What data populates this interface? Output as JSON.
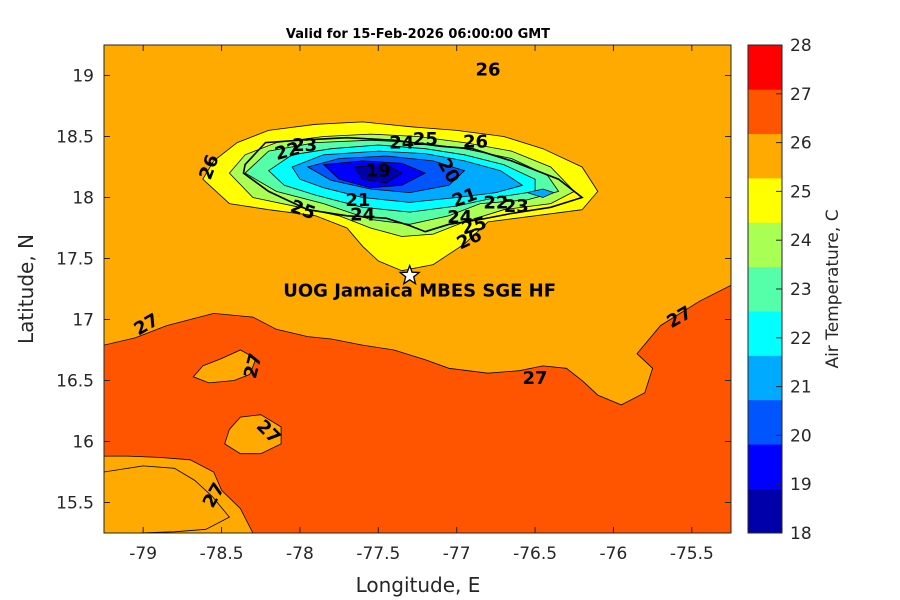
{
  "title": "Valid for 15-Feb-2026 06:00:00 GMT",
  "station": {
    "label": "UOG Jamaica MBES SGE HF",
    "lon": -77.3,
    "lat": 17.36
  },
  "chart_data": {
    "type": "filled-contour-map",
    "title": "Valid for 15-Feb-2026 06:00:00 GMT",
    "xlabel": "Longitude, E",
    "ylabel": "Latitude, N",
    "xlim": [
      -79.25,
      -75.25
    ],
    "ylim": [
      15.25,
      19.25
    ],
    "xticks": [
      -79,
      -78.5,
      -78,
      -77.5,
      -77,
      -76.5,
      -76,
      -75.5
    ],
    "xtick_labels": [
      "-79",
      "-78.5",
      "-78",
      "-77.5",
      "-77",
      "-76.5",
      "-76",
      "-75.5"
    ],
    "yticks": [
      15.5,
      16,
      16.5,
      17,
      17.5,
      18,
      18.5,
      19
    ],
    "ytick_labels": [
      "15.5",
      "16",
      "16.5",
      "17",
      "17.5",
      "18",
      "18.5",
      "19"
    ],
    "colorbar": {
      "label": "Air Temperature, C",
      "levels": [
        18,
        19,
        20,
        21,
        22,
        23,
        24,
        25,
        26,
        27,
        28
      ],
      "tick_labels": [
        "18",
        "19",
        "20",
        "21",
        "22",
        "23",
        "24",
        "25",
        "26",
        "27",
        "28"
      ],
      "colors": [
        "#0000aa",
        "#0000ff",
        "#0055ff",
        "#00aaff",
        "#00ffff",
        "#55ffaa",
        "#aaff55",
        "#ffff00",
        "#ffaa00",
        "#ff5500",
        "#ff0000"
      ]
    },
    "background_level": 26,
    "regions": [
      {
        "level": 27,
        "outline": [
          [
            -79.25,
            16.79
          ],
          [
            -79.05,
            16.85
          ],
          [
            -78.85,
            16.95
          ],
          [
            -78.55,
            17.05
          ],
          [
            -78.3,
            17.02
          ],
          [
            -78.15,
            16.92
          ],
          [
            -77.95,
            16.86
          ],
          [
            -77.8,
            16.84
          ],
          [
            -77.6,
            16.79
          ],
          [
            -77.4,
            16.75
          ],
          [
            -77.2,
            16.67
          ],
          [
            -77.05,
            16.6
          ],
          [
            -76.8,
            16.56
          ],
          [
            -76.6,
            16.58
          ],
          [
            -76.45,
            16.62
          ],
          [
            -76.3,
            16.6
          ],
          [
            -76.2,
            16.5
          ],
          [
            -76.1,
            16.38
          ],
          [
            -75.95,
            16.3
          ],
          [
            -75.8,
            16.4
          ],
          [
            -75.75,
            16.6
          ],
          [
            -75.85,
            16.72
          ],
          [
            -75.7,
            16.95
          ],
          [
            -75.45,
            17.15
          ],
          [
            -75.25,
            17.28
          ],
          [
            -75.25,
            15.25
          ],
          [
            -78.3,
            15.25
          ],
          [
            -78.38,
            15.45
          ],
          [
            -78.5,
            15.6
          ],
          [
            -78.55,
            15.75
          ],
          [
            -78.7,
            15.85
          ],
          [
            -78.9,
            15.87
          ],
          [
            -79.1,
            15.88
          ],
          [
            -79.25,
            15.88
          ]
        ]
      },
      {
        "level": 26,
        "outline": [
          [
            -79.25,
            15.75
          ],
          [
            -79.0,
            15.8
          ],
          [
            -78.8,
            15.78
          ],
          [
            -78.67,
            15.68
          ],
          [
            -78.56,
            15.55
          ],
          [
            -78.45,
            15.38
          ],
          [
            -78.6,
            15.28
          ],
          [
            -78.8,
            15.26
          ],
          [
            -79.05,
            15.25
          ],
          [
            -79.25,
            15.25
          ]
        ]
      },
      {
        "level": 26,
        "outline": [
          [
            -78.62,
            16.62
          ],
          [
            -78.5,
            16.68
          ],
          [
            -78.38,
            16.75
          ],
          [
            -78.28,
            16.68
          ],
          [
            -78.32,
            16.55
          ],
          [
            -78.42,
            16.5
          ],
          [
            -78.58,
            16.48
          ],
          [
            -78.68,
            16.53
          ]
        ]
      },
      {
        "level": 26,
        "outline": [
          [
            -78.45,
            16.1
          ],
          [
            -78.38,
            16.2
          ],
          [
            -78.25,
            16.22
          ],
          [
            -78.12,
            16.12
          ],
          [
            -78.12,
            15.98
          ],
          [
            -78.25,
            15.9
          ],
          [
            -78.38,
            15.9
          ],
          [
            -78.48,
            15.98
          ]
        ]
      },
      {
        "level": 25,
        "outline": [
          [
            -78.62,
            18.15
          ],
          [
            -78.55,
            18.3
          ],
          [
            -78.4,
            18.45
          ],
          [
            -78.2,
            18.55
          ],
          [
            -77.9,
            18.6
          ],
          [
            -77.6,
            18.62
          ],
          [
            -77.3,
            18.58
          ],
          [
            -77.0,
            18.55
          ],
          [
            -76.7,
            18.5
          ],
          [
            -76.45,
            18.4
          ],
          [
            -76.2,
            18.25
          ],
          [
            -76.1,
            18.05
          ],
          [
            -76.2,
            17.9
          ],
          [
            -76.5,
            17.85
          ],
          [
            -76.8,
            17.8
          ],
          [
            -76.95,
            17.62
          ],
          [
            -77.15,
            17.45
          ],
          [
            -77.35,
            17.4
          ],
          [
            -77.5,
            17.48
          ],
          [
            -77.6,
            17.6
          ],
          [
            -77.7,
            17.75
          ],
          [
            -77.9,
            17.85
          ],
          [
            -78.2,
            17.9
          ],
          [
            -78.45,
            17.95
          ]
        ]
      },
      {
        "level": 24,
        "outline": [
          [
            -78.45,
            18.2
          ],
          [
            -78.35,
            18.35
          ],
          [
            -78.15,
            18.45
          ],
          [
            -77.85,
            18.5
          ],
          [
            -77.55,
            18.52
          ],
          [
            -77.25,
            18.5
          ],
          [
            -76.95,
            18.45
          ],
          [
            -76.65,
            18.38
          ],
          [
            -76.4,
            18.25
          ],
          [
            -76.25,
            18.05
          ],
          [
            -76.4,
            17.95
          ],
          [
            -76.7,
            17.9
          ],
          [
            -76.95,
            17.8
          ],
          [
            -77.15,
            17.7
          ],
          [
            -77.35,
            17.68
          ],
          [
            -77.55,
            17.75
          ],
          [
            -77.75,
            17.85
          ],
          [
            -78.0,
            17.92
          ],
          [
            -78.3,
            18.0
          ]
        ]
      },
      {
        "level": 23,
        "outline": [
          [
            -78.35,
            18.2
          ],
          [
            -78.2,
            18.38
          ],
          [
            -77.9,
            18.45
          ],
          [
            -77.55,
            18.47
          ],
          [
            -77.25,
            18.45
          ],
          [
            -76.95,
            18.4
          ],
          [
            -76.65,
            18.32
          ],
          [
            -76.42,
            18.18
          ],
          [
            -76.35,
            18.05
          ],
          [
            -76.55,
            17.98
          ],
          [
            -76.85,
            17.95
          ],
          [
            -77.05,
            17.85
          ],
          [
            -77.3,
            17.78
          ],
          [
            -77.55,
            17.82
          ],
          [
            -77.85,
            17.95
          ],
          [
            -78.15,
            18.05
          ]
        ]
      },
      {
        "level": 22,
        "outline": [
          [
            -78.2,
            18.22
          ],
          [
            -78.05,
            18.35
          ],
          [
            -77.8,
            18.4
          ],
          [
            -77.5,
            18.43
          ],
          [
            -77.2,
            18.4
          ],
          [
            -76.95,
            18.35
          ],
          [
            -76.7,
            18.27
          ],
          [
            -76.5,
            18.15
          ],
          [
            -76.5,
            18.05
          ],
          [
            -76.75,
            18.0
          ],
          [
            -77.0,
            17.93
          ],
          [
            -77.3,
            17.88
          ],
          [
            -77.6,
            17.92
          ],
          [
            -77.9,
            18.02
          ],
          [
            -78.1,
            18.1
          ]
        ]
      },
      {
        "level": 21,
        "outline": [
          [
            -78.05,
            18.25
          ],
          [
            -77.85,
            18.35
          ],
          [
            -77.5,
            18.38
          ],
          [
            -77.2,
            18.36
          ],
          [
            -76.95,
            18.3
          ],
          [
            -76.72,
            18.22
          ],
          [
            -76.58,
            18.1
          ],
          [
            -76.75,
            18.04
          ],
          [
            -77.0,
            18.0
          ],
          [
            -77.3,
            17.96
          ],
          [
            -77.6,
            18.0
          ],
          [
            -77.85,
            18.08
          ],
          [
            -78.0,
            18.15
          ]
        ]
      },
      {
        "level": 20,
        "outline": [
          [
            -77.95,
            18.25
          ],
          [
            -77.75,
            18.32
          ],
          [
            -77.45,
            18.34
          ],
          [
            -77.15,
            18.3
          ],
          [
            -76.95,
            18.22
          ],
          [
            -77.05,
            18.1
          ],
          [
            -77.3,
            18.04
          ],
          [
            -77.55,
            18.07
          ],
          [
            -77.8,
            18.14
          ]
        ]
      },
      {
        "level": 19,
        "outline": [
          [
            -77.85,
            18.27
          ],
          [
            -77.6,
            18.3
          ],
          [
            -77.35,
            18.28
          ],
          [
            -77.2,
            18.2
          ],
          [
            -77.35,
            18.1
          ],
          [
            -77.55,
            18.08
          ],
          [
            -77.75,
            18.15
          ]
        ]
      },
      {
        "level": 18,
        "outline": [
          [
            -77.65,
            18.25
          ],
          [
            -77.45,
            18.27
          ],
          [
            -77.35,
            18.2
          ],
          [
            -77.45,
            18.12
          ],
          [
            -77.6,
            18.15
          ]
        ]
      },
      {
        "level": 21,
        "outline": [
          [
            -76.55,
            18.04
          ],
          [
            -76.45,
            18.07
          ],
          [
            -76.38,
            18.04
          ],
          [
            -76.45,
            18.0
          ]
        ]
      }
    ],
    "coastline": [
      [
        -78.35,
        18.27
      ],
      [
        -78.22,
        18.45
      ],
      [
        -78.0,
        18.47
      ],
      [
        -77.7,
        18.49
      ],
      [
        -77.4,
        18.47
      ],
      [
        -77.1,
        18.42
      ],
      [
        -76.9,
        18.4
      ],
      [
        -76.65,
        18.3
      ],
      [
        -76.35,
        18.15
      ],
      [
        -76.2,
        18.0
      ],
      [
        -76.4,
        17.92
      ],
      [
        -76.65,
        17.87
      ],
      [
        -76.85,
        17.82
      ],
      [
        -77.05,
        17.78
      ],
      [
        -77.2,
        17.72
      ],
      [
        -77.3,
        17.77
      ],
      [
        -77.45,
        17.83
      ],
      [
        -77.7,
        17.85
      ],
      [
        -77.95,
        17.9
      ],
      [
        -78.2,
        18.05
      ],
      [
        -78.36,
        18.2
      ]
    ],
    "contour_labels": [
      {
        "text": "26",
        "lon": -76.8,
        "lat": 19.05,
        "angle": 0
      },
      {
        "text": "25",
        "lon": -77.2,
        "lat": 18.48,
        "angle": 0
      },
      {
        "text": "24",
        "lon": -77.35,
        "lat": 18.45,
        "angle": 0
      },
      {
        "text": "26",
        "lon": -76.88,
        "lat": 18.46,
        "angle": 0
      },
      {
        "text": "23",
        "lon": -77.97,
        "lat": 18.43,
        "angle": 0
      },
      {
        "text": "22",
        "lon": -78.08,
        "lat": 18.38,
        "angle": -15
      },
      {
        "text": "19",
        "lon": -77.5,
        "lat": 18.22,
        "angle": 0
      },
      {
        "text": "20",
        "lon": -77.05,
        "lat": 18.22,
        "angle": 60
      },
      {
        "text": "26",
        "lon": -78.58,
        "lat": 18.25,
        "angle": -70
      },
      {
        "text": "21",
        "lon": -77.63,
        "lat": 17.98,
        "angle": 0
      },
      {
        "text": "21",
        "lon": -76.95,
        "lat": 18.0,
        "angle": -20
      },
      {
        "text": "22",
        "lon": -76.75,
        "lat": 17.96,
        "angle": 0
      },
      {
        "text": "23",
        "lon": -76.62,
        "lat": 17.93,
        "angle": 0
      },
      {
        "text": "25",
        "lon": -77.98,
        "lat": 17.9,
        "angle": 20
      },
      {
        "text": "24",
        "lon": -77.6,
        "lat": 17.86,
        "angle": 0
      },
      {
        "text": "24",
        "lon": -76.98,
        "lat": 17.84,
        "angle": 0
      },
      {
        "text": "25",
        "lon": -76.89,
        "lat": 17.77,
        "angle": -15
      },
      {
        "text": "26",
        "lon": -76.92,
        "lat": 17.66,
        "angle": -25
      },
      {
        "text": "27",
        "lon": -78.98,
        "lat": 16.96,
        "angle": -30
      },
      {
        "text": "27",
        "lon": -75.58,
        "lat": 17.02,
        "angle": -30
      },
      {
        "text": "27",
        "lon": -78.3,
        "lat": 16.62,
        "angle": -75
      },
      {
        "text": "27",
        "lon": -76.5,
        "lat": 16.52,
        "angle": 0
      },
      {
        "text": "27",
        "lon": -78.2,
        "lat": 16.08,
        "angle": 45
      },
      {
        "text": "27",
        "lon": -78.55,
        "lat": 15.56,
        "angle": -60
      }
    ]
  }
}
